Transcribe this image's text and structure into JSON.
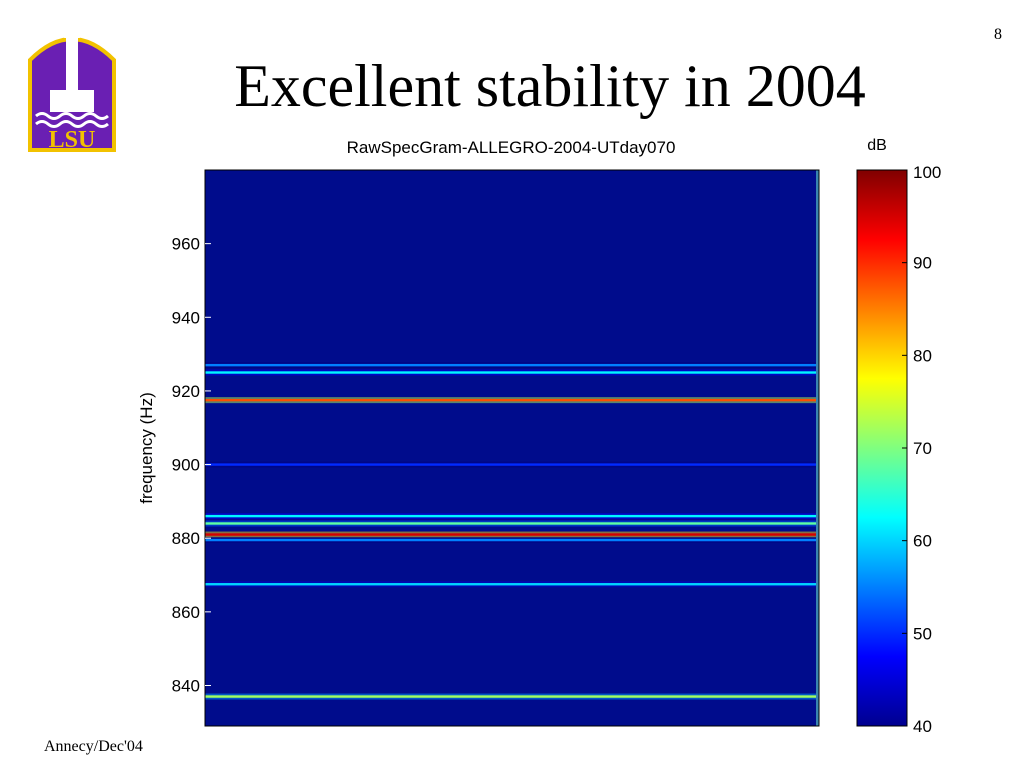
{
  "slide": {
    "title": "Excellent stability in 2004",
    "page_number": "8",
    "footer": "Annecy/Dec'04",
    "logo_text": "LSU"
  },
  "colors": {
    "background_field": "#000c8c",
    "logo_purple": "#6a1fb3",
    "logo_gold": "#f2c200"
  },
  "chart_data": {
    "type": "heatmap",
    "title": "RawSpecGram-ALLEGRO-2004-UTday070",
    "ylabel": "frequency (Hz)",
    "xlabel": "",
    "ylim": [
      829,
      980
    ],
    "yticks": [
      840,
      860,
      880,
      900,
      920,
      940,
      960
    ],
    "colorbar": {
      "label": "dB",
      "range": [
        40,
        100
      ],
      "ticks": [
        40,
        50,
        60,
        70,
        80,
        90,
        100
      ],
      "colormap": "jet"
    },
    "background_level_db": 42,
    "lines": [
      {
        "frequency": 927.0,
        "level_db": 55
      },
      {
        "frequency": 925.0,
        "level_db": 62
      },
      {
        "frequency": 917.5,
        "level_db": 88
      },
      {
        "frequency": 900.0,
        "level_db": 50
      },
      {
        "frequency": 886.0,
        "level_db": 62
      },
      {
        "frequency": 884.0,
        "level_db": 68
      },
      {
        "frequency": 881.0,
        "level_db": 95
      },
      {
        "frequency": 879.5,
        "level_db": 55
      },
      {
        "frequency": 867.5,
        "level_db": 60
      },
      {
        "frequency": 837.0,
        "level_db": 72
      }
    ]
  }
}
